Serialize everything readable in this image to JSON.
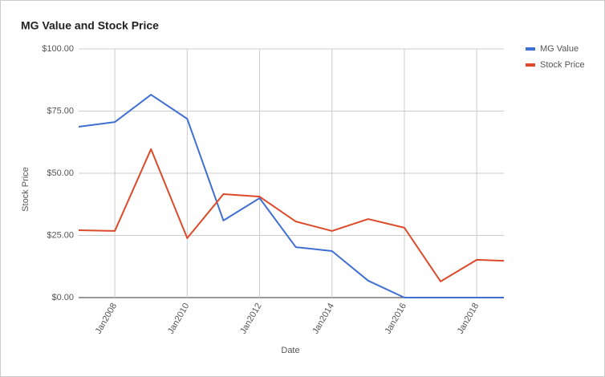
{
  "chart_data": {
    "type": "line",
    "title": "MG Value and Stock Price",
    "x_label": "Date",
    "y_label": "Stock Price",
    "x": [
      2007,
      2008,
      2009,
      2010,
      2011,
      2012,
      2013,
      2014,
      2015,
      2016,
      2017,
      2018,
      2018.75
    ],
    "series": [
      {
        "name": "MG Value",
        "color": "#3f6fd1",
        "values": [
          68.7,
          70.6,
          81.6,
          71.9,
          31.0,
          40.0,
          20.3,
          18.7,
          6.8,
          0,
          0,
          0,
          0
        ]
      },
      {
        "name": "Stock Price",
        "color": "#dc4a2a",
        "values": [
          27.1,
          26.8,
          59.7,
          23.9,
          41.6,
          40.6,
          30.6,
          26.8,
          31.6,
          28.1,
          6.5,
          15.2,
          14.8
        ]
      }
    ],
    "xlim": [
      2007,
      2018.75
    ],
    "xticks": [
      {
        "value": 2008,
        "label": "Jan2008"
      },
      {
        "value": 2010,
        "label": "Jan2010"
      },
      {
        "value": 2012,
        "label": "Jan2012"
      },
      {
        "value": 2014,
        "label": "Jan2014"
      },
      {
        "value": 2016,
        "label": "Jan2016"
      },
      {
        "value": 2018,
        "label": "Jan2018"
      }
    ],
    "ylim": [
      0,
      100
    ],
    "yticks": [
      {
        "value": 0,
        "label": "$0.00"
      },
      {
        "value": 25,
        "label": "$25.00"
      },
      {
        "value": 50,
        "label": "$50.00"
      },
      {
        "value": 75,
        "label": "$75.00"
      },
      {
        "value": 100,
        "label": "$100.00"
      }
    ],
    "grid": true,
    "legend": "right"
  }
}
